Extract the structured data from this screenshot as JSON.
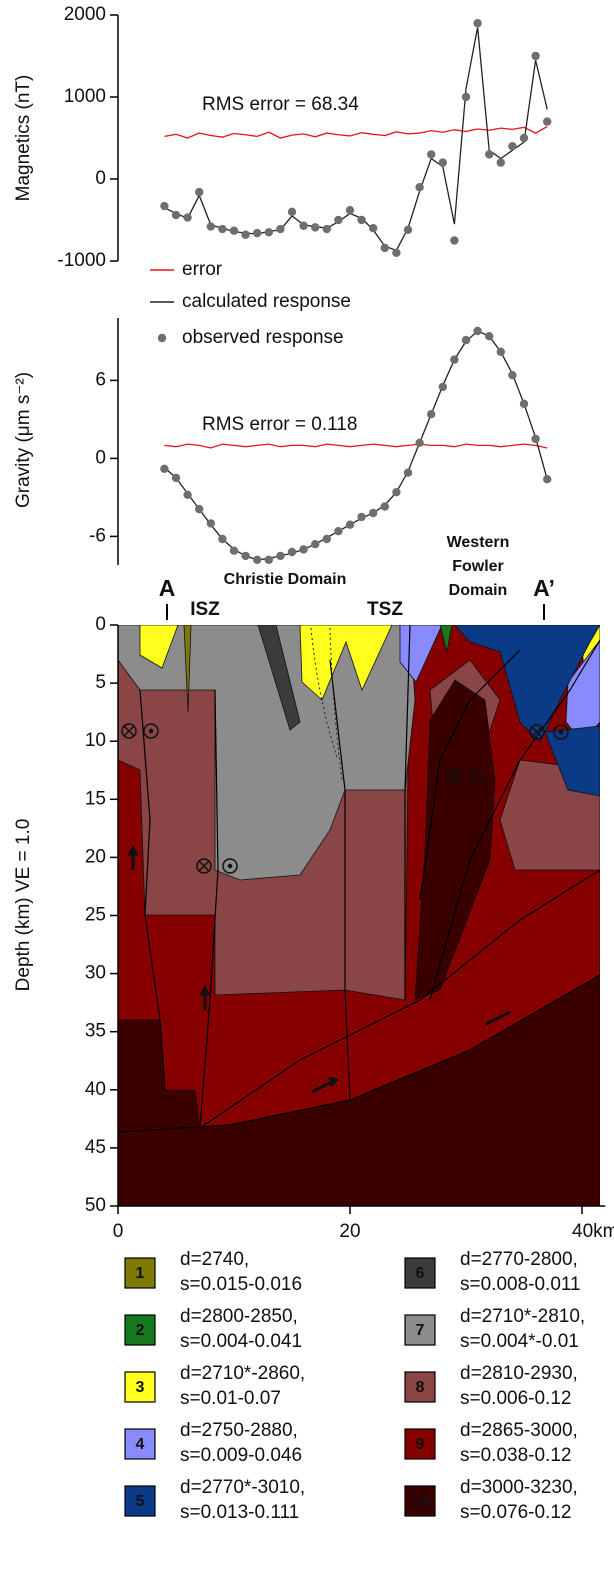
{
  "chart_data": [
    {
      "type": "line",
      "ylabel": "Magnetics  (nT)",
      "annotation": "RMS error = 68.34",
      "xlim": [
        0,
        42
      ],
      "ylim": [
        -1000,
        2000
      ],
      "yticks": [
        -1000,
        0,
        1000,
        2000
      ],
      "x": [
        4,
        5,
        6,
        7,
        8,
        9,
        10,
        11,
        12,
        13,
        14,
        15,
        16,
        17,
        18,
        19,
        20,
        21,
        22,
        23,
        24,
        25,
        26,
        27,
        28,
        29,
        30,
        31,
        32,
        33,
        34,
        35,
        36,
        37
      ],
      "legend": true,
      "series": [
        {
          "name": "error",
          "color": "#e8141c",
          "style": "line",
          "values": [
            520,
            545,
            500,
            560,
            530,
            510,
            555,
            540,
            520,
            570,
            500,
            535,
            550,
            515,
            560,
            540,
            525,
            565,
            545,
            530,
            575,
            550,
            560,
            590,
            570,
            600,
            580,
            610,
            595,
            620,
            605,
            630,
            560,
            640
          ]
        },
        {
          "name": "calculated response",
          "color": "#222222",
          "style": "line",
          "values": [
            -350,
            -420,
            -480,
            -200,
            -560,
            -600,
            -640,
            -660,
            -670,
            -640,
            -620,
            -450,
            -560,
            -580,
            -600,
            -520,
            -420,
            -480,
            -620,
            -820,
            -870,
            -600,
            -150,
            250,
            150,
            -550,
            1100,
            1850,
            350,
            250,
            350,
            450,
            1450,
            850
          ]
        },
        {
          "name": "observed response",
          "color": "#6e6e6e",
          "style": "markers",
          "values": [
            -330,
            -440,
            -470,
            -160,
            -580,
            -610,
            -630,
            -680,
            -660,
            -650,
            -610,
            -400,
            -570,
            -590,
            -610,
            -500,
            -380,
            -500,
            -600,
            -840,
            -900,
            -620,
            -100,
            300,
            200,
            -750,
            1000,
            1900,
            300,
            200,
            400,
            500,
            1500,
            700
          ]
        }
      ]
    },
    {
      "type": "line",
      "ylabel": "Gravity (μm s⁻²)",
      "annotation": "RMS error = 0.118",
      "xlim": [
        0,
        42
      ],
      "ylim": [
        -8.2,
        10.8
      ],
      "yticks": [
        -6,
        0,
        6
      ],
      "x": [
        4,
        5,
        6,
        7,
        8,
        9,
        10,
        11,
        12,
        13,
        14,
        15,
        16,
        17,
        18,
        19,
        20,
        21,
        22,
        23,
        24,
        25,
        26,
        27,
        28,
        29,
        30,
        31,
        32,
        33,
        34,
        35,
        36,
        37
      ],
      "series": [
        {
          "color": "#e8141c",
          "style": "line",
          "values": [
            1.0,
            0.9,
            1.1,
            1.0,
            0.8,
            1.1,
            1.0,
            0.9,
            1.0,
            1.1,
            0.9,
            1.0,
            1.0,
            0.9,
            1.1,
            1.0,
            0.9,
            1.0,
            1.1,
            1.0,
            0.9,
            1.0,
            1.1,
            1.0,
            1.0,
            0.9,
            1.1,
            1.0,
            1.0,
            0.9,
            1.0,
            1.1,
            1.0,
            0.8
          ]
        },
        {
          "color": "#222222",
          "style": "line",
          "values": [
            -0.7,
            -1.5,
            -2.7,
            -3.9,
            -5.1,
            -6.2,
            -7.0,
            -7.5,
            -7.8,
            -7.7,
            -7.5,
            -7.3,
            -7.0,
            -6.6,
            -6.1,
            -5.6,
            -5.1,
            -4.6,
            -4.2,
            -3.6,
            -2.6,
            -1.0,
            1.2,
            3.4,
            5.6,
            7.6,
            9.0,
            9.8,
            9.4,
            8.2,
            6.5,
            4.2,
            1.6,
            -1.6
          ]
        },
        {
          "color": "#6e6e6e",
          "style": "markers",
          "values": [
            -0.8,
            -1.5,
            -2.8,
            -3.9,
            -5.0,
            -6.2,
            -7.1,
            -7.5,
            -7.8,
            -7.8,
            -7.5,
            -7.2,
            -7.0,
            -6.6,
            -6.2,
            -5.6,
            -5.1,
            -4.5,
            -4.2,
            -3.7,
            -2.6,
            -1.1,
            1.2,
            3.4,
            5.5,
            7.6,
            9.1,
            9.8,
            9.4,
            8.2,
            6.4,
            4.2,
            1.5,
            -1.6
          ]
        }
      ]
    },
    {
      "type": "cross-section",
      "ylabel": "Depth (km)  VE = 1.0",
      "xlim": [
        0,
        42
      ],
      "xticks": [
        0,
        20,
        {
          "value": 40,
          "label": "40km"
        }
      ],
      "ylim": [
        0,
        50
      ],
      "yticks": [
        0,
        5,
        10,
        15,
        20,
        25,
        30,
        35,
        40,
        45,
        50
      ],
      "labels": [
        "A",
        "ISZ",
        "Christie Domain",
        "TSZ",
        "Western",
        "Fowler",
        "Domain",
        "A’"
      ],
      "units": [
        {
          "number": 1,
          "color": "#7d7a05",
          "density": "d=2740,",
          "susceptibility": "s=0.015-0.016"
        },
        {
          "number": 2,
          "color": "#16781c",
          "density": "d=2800-2850,",
          "susceptibility": "s=0.004-0.041"
        },
        {
          "number": 3,
          "color": "#ffff1e",
          "density": "d=2710*-2860,",
          "susceptibility": "s=0.01-0.07"
        },
        {
          "number": 4,
          "color": "#8a8aff",
          "density": "d=2750-2880,",
          "susceptibility": "s=0.009-0.046"
        },
        {
          "number": 5,
          "color": "#0b3b86",
          "density": "d=2770*-3010,",
          "susceptibility": "s=0.013-0.111"
        },
        {
          "number": 6,
          "color": "#3c3c3c",
          "density": "d=2770-2800,",
          "susceptibility": "s=0.008-0.011"
        },
        {
          "number": 7,
          "color": "#8c8c8c",
          "density": "d=2710*-2810,",
          "susceptibility": "s=0.004*-0.01"
        },
        {
          "number": 8,
          "color": "#8a4646",
          "density": "d=2810-2930,",
          "susceptibility": "s=0.006-0.12"
        },
        {
          "number": 9,
          "color": "#860000",
          "density": "d=2865-3000,",
          "susceptibility": "s=0.038-0.12"
        },
        {
          "number": 10,
          "color": "#3a0000",
          "density": "d=3000-3230,",
          "susceptibility": "s=0.076-0.12"
        }
      ]
    }
  ]
}
